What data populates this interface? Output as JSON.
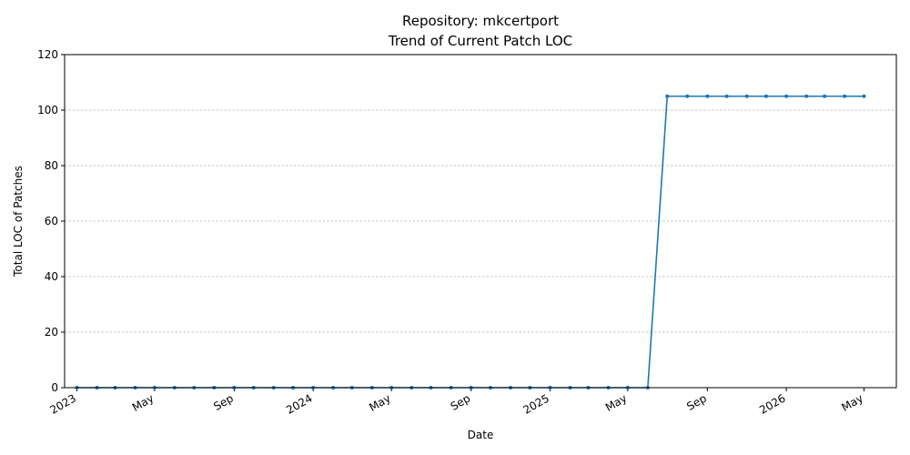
{
  "chart_data": {
    "type": "line",
    "title": "Repository: mkcertport",
    "subtitle": "Trend of Current Patch LOC",
    "xlabel": "Date",
    "ylabel": "Total LOC of Patches",
    "ylim": [
      0,
      120
    ],
    "yticks": [
      0,
      20,
      40,
      60,
      80,
      100,
      120
    ],
    "xlim": [
      "2022-12-13",
      "2026-06-20"
    ],
    "xticks": [
      {
        "date": "2023-01-01",
        "label": "2023"
      },
      {
        "date": "2023-05-01",
        "label": "May"
      },
      {
        "date": "2023-09-01",
        "label": "Sep"
      },
      {
        "date": "2024-01-01",
        "label": "2024"
      },
      {
        "date": "2024-05-01",
        "label": "May"
      },
      {
        "date": "2024-09-01",
        "label": "Sep"
      },
      {
        "date": "2025-01-01",
        "label": "2025"
      },
      {
        "date": "2025-05-01",
        "label": "May"
      },
      {
        "date": "2025-09-01",
        "label": "Sep"
      },
      {
        "date": "2026-01-01",
        "label": "2026"
      },
      {
        "date": "2026-05-01",
        "label": "May"
      }
    ],
    "grid": "y",
    "line_color": "#1f77b4",
    "series": [
      {
        "x": [
          "2023-01-01",
          "2023-02-01",
          "2023-03-01",
          "2023-04-01",
          "2023-05-01",
          "2023-06-01",
          "2023-07-01",
          "2023-08-01",
          "2023-09-01",
          "2023-10-01",
          "2023-11-01",
          "2023-12-01",
          "2024-01-01",
          "2024-02-01",
          "2024-03-01",
          "2024-04-01",
          "2024-05-01",
          "2024-06-01",
          "2024-07-01",
          "2024-08-01",
          "2024-09-01",
          "2024-10-01",
          "2024-11-01",
          "2024-12-01",
          "2025-01-01",
          "2025-02-01",
          "2025-03-01",
          "2025-04-01",
          "2025-05-01",
          "2025-06-01",
          "2025-07-01",
          "2025-08-01",
          "2025-09-01",
          "2025-10-01",
          "2025-11-01",
          "2025-12-01",
          "2026-01-01",
          "2026-02-01",
          "2026-03-01",
          "2026-04-01",
          "2026-05-01"
        ],
        "y": [
          0,
          0,
          0,
          0,
          0,
          0,
          0,
          0,
          0,
          0,
          0,
          0,
          0,
          0,
          0,
          0,
          0,
          0,
          0,
          0,
          0,
          0,
          0,
          0,
          0,
          0,
          0,
          0,
          0,
          0,
          105,
          105,
          105,
          105,
          105,
          105,
          105,
          105,
          105,
          105,
          105
        ]
      }
    ]
  }
}
